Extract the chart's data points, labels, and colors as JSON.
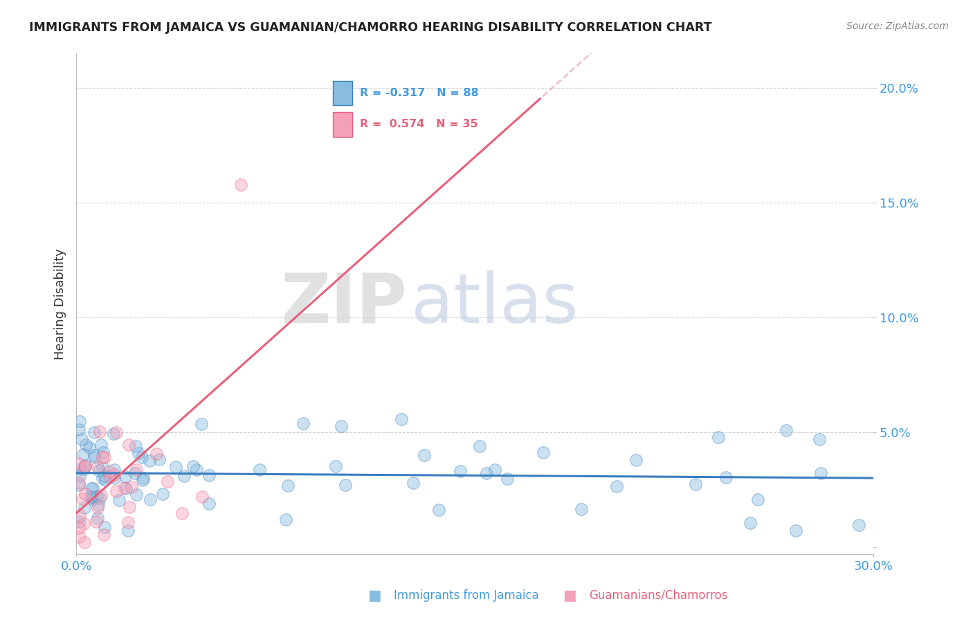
{
  "title": "IMMIGRANTS FROM JAMAICA VS GUAMANIAN/CHAMORRO HEARING DISABILITY CORRELATION CHART",
  "source": "Source: ZipAtlas.com",
  "ylabel": "Hearing Disability",
  "legend_entry1": "R = -0.317   N = 88",
  "legend_entry2": "R =  0.574   N = 35",
  "legend_label1": "Immigrants from Jamaica",
  "legend_label2": "Guamanians/Chamorros",
  "x_min": 0.0,
  "x_max": 0.3,
  "y_min": -0.003,
  "y_max": 0.215,
  "yticks": [
    0.0,
    0.05,
    0.1,
    0.15,
    0.2
  ],
  "ytick_labels": [
    "",
    "5.0%",
    "10.0%",
    "15.0%",
    "20.0%"
  ],
  "color_blue": "#89bde0",
  "color_pink": "#f4a0b8",
  "color_blue_line": "#3a7dbf",
  "color_pink_line": "#e8607a",
  "color_pink_dash": "#e8a0b0",
  "color_grid": "#cccccc",
  "color_axis_labels": "#4499dd",
  "title_color": "#222222",
  "blue_R": -0.317,
  "blue_N": 88,
  "pink_R": 0.574,
  "pink_N": 35,
  "seed": 77
}
